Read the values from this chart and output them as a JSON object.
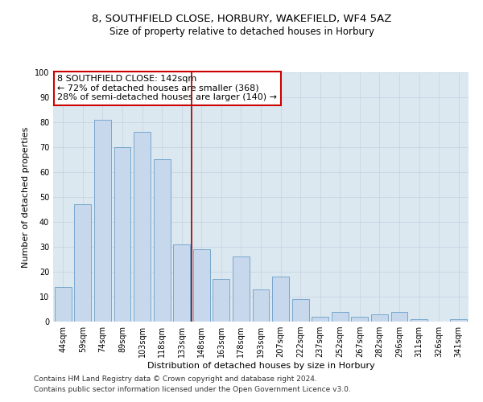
{
  "title": "8, SOUTHFIELD CLOSE, HORBURY, WAKEFIELD, WF4 5AZ",
  "subtitle": "Size of property relative to detached houses in Horbury",
  "xlabel": "Distribution of detached houses by size in Horbury",
  "ylabel": "Number of detached properties",
  "categories": [
    "44sqm",
    "59sqm",
    "74sqm",
    "89sqm",
    "103sqm",
    "118sqm",
    "133sqm",
    "148sqm",
    "163sqm",
    "178sqm",
    "193sqm",
    "207sqm",
    "222sqm",
    "237sqm",
    "252sqm",
    "267sqm",
    "282sqm",
    "296sqm",
    "311sqm",
    "326sqm",
    "341sqm"
  ],
  "values": [
    14,
    47,
    81,
    70,
    76,
    65,
    31,
    29,
    17,
    26,
    13,
    18,
    9,
    2,
    4,
    2,
    3,
    4,
    1,
    0,
    1
  ],
  "bar_color": "#c8d8ec",
  "bar_edge_color": "#6a9fc8",
  "vline_x": 6.5,
  "vline_color": "#990000",
  "annotation_line1": "8 SOUTHFIELD CLOSE: 142sqm",
  "annotation_line2": "← 72% of detached houses are smaller (368)",
  "annotation_line3": "28% of semi-detached houses are larger (140) →",
  "annotation_box_color": "#ffffff",
  "annotation_box_edge": "#cc0000",
  "ylim": [
    0,
    100
  ],
  "yticks": [
    0,
    10,
    20,
    30,
    40,
    50,
    60,
    70,
    80,
    90,
    100
  ],
  "grid_color": "#c8d4e4",
  "background_color": "#dce8f0",
  "footer_line1": "Contains HM Land Registry data © Crown copyright and database right 2024.",
  "footer_line2": "Contains public sector information licensed under the Open Government Licence v3.0.",
  "title_fontsize": 9.5,
  "subtitle_fontsize": 8.5,
  "xlabel_fontsize": 8,
  "ylabel_fontsize": 8,
  "tick_fontsize": 7,
  "annotation_fontsize": 8,
  "footer_fontsize": 6.5
}
